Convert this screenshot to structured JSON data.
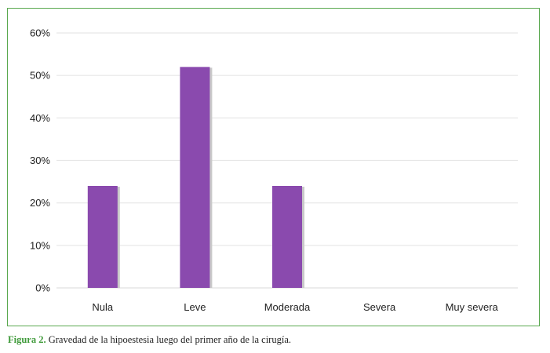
{
  "chart_data": {
    "type": "bar",
    "categories": [
      "Nula",
      "Leve",
      "Moderada",
      "Severa",
      "Muy severa"
    ],
    "values": [
      24,
      52,
      24,
      0,
      0
    ],
    "ylim": [
      0,
      60
    ],
    "yticks": [
      "0%",
      "10%",
      "20%",
      "30%",
      "40%",
      "50%",
      "60%"
    ],
    "ytick_values": [
      0,
      10,
      20,
      30,
      40,
      50,
      60
    ],
    "grid": true,
    "bar_color": "#8a4aae",
    "bar_shadow_color": "#c9c9c9",
    "grid_color": "#e6e6e6",
    "frame_color": "#5aa84f"
  },
  "caption": {
    "label": "Figura 2.",
    "text": "Gravedad de la hipoestesia luego del primer año de la cirugía."
  }
}
